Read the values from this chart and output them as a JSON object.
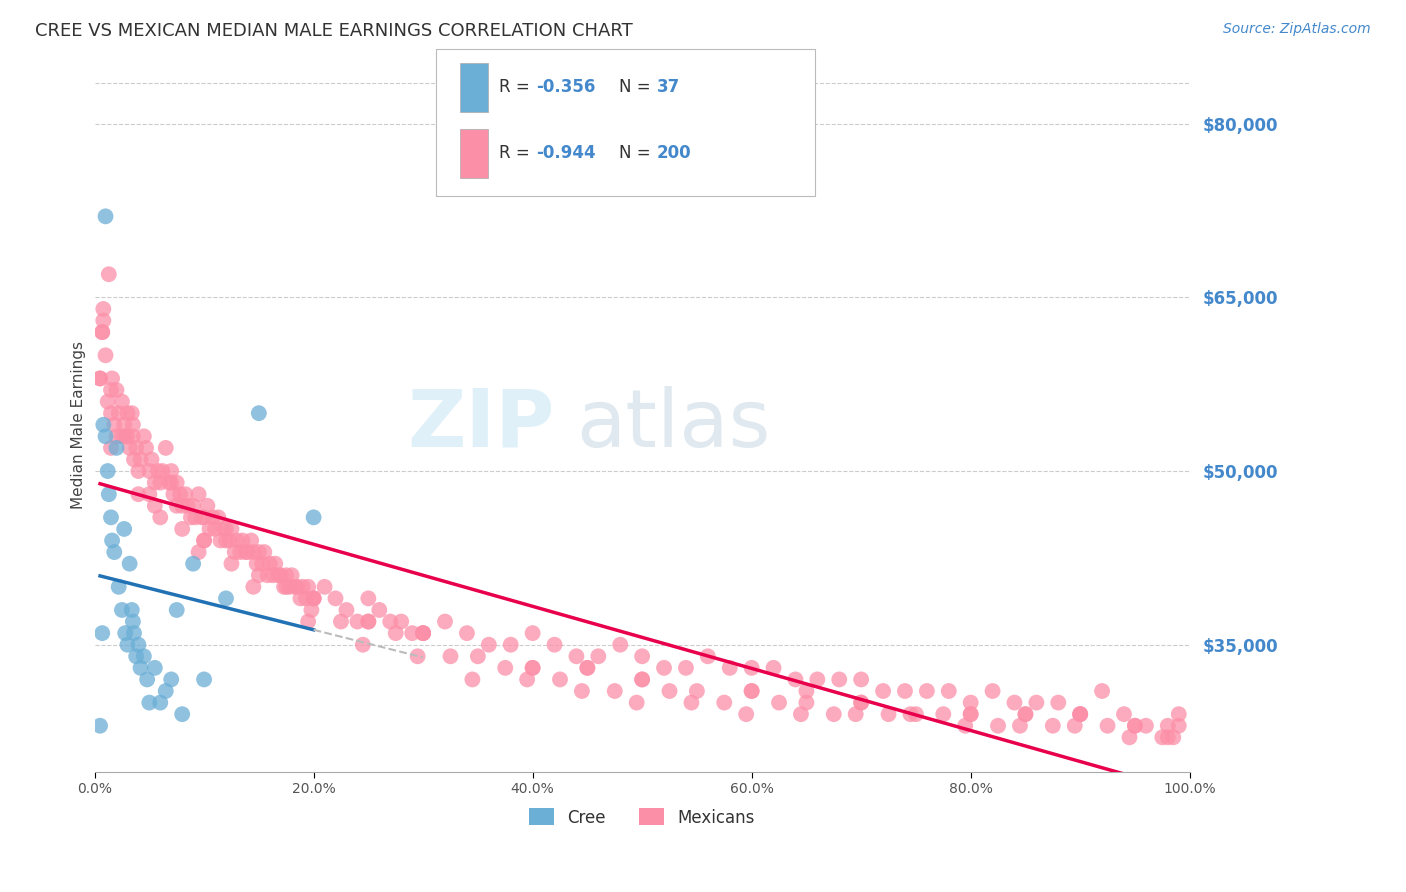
{
  "title": "CREE VS MEXICAN MEDIAN MALE EARNINGS CORRELATION CHART",
  "source": "Source: ZipAtlas.com",
  "ylabel": "Median Male Earnings",
  "right_yticks": [
    80000,
    65000,
    50000,
    35000
  ],
  "right_ytick_labels": [
    "$80,000",
    "$65,000",
    "$50,000",
    "$35,000"
  ],
  "cree_color": "#6baed6",
  "cree_line_color": "#2171b5",
  "mexican_color": "#fc8fa8",
  "mexican_line_color": "#e8004c",
  "watermark_zip": "ZIP",
  "watermark_atlas": "atlas",
  "bg_color": "#ffffff",
  "grid_color": "#cccccc",
  "title_color": "#333333",
  "label_color": "#4488cc",
  "xmin": 0.0,
  "xmax": 1.0,
  "ymin": 24000,
  "ymax": 84000,
  "cree_scatter_x": [
    0.005,
    0.007,
    0.008,
    0.01,
    0.012,
    0.013,
    0.015,
    0.016,
    0.018,
    0.02,
    0.022,
    0.025,
    0.027,
    0.028,
    0.03,
    0.032,
    0.034,
    0.035,
    0.036,
    0.038,
    0.04,
    0.042,
    0.045,
    0.048,
    0.05,
    0.055,
    0.06,
    0.065,
    0.07,
    0.075,
    0.08,
    0.09,
    0.1,
    0.12,
    0.15,
    0.2,
    0.01
  ],
  "cree_scatter_y": [
    28000,
    36000,
    54000,
    53000,
    50000,
    48000,
    46000,
    44000,
    43000,
    52000,
    40000,
    38000,
    45000,
    36000,
    35000,
    42000,
    38000,
    37000,
    36000,
    34000,
    35000,
    33000,
    34000,
    32000,
    30000,
    33000,
    30000,
    31000,
    32000,
    38000,
    29000,
    42000,
    32000,
    39000,
    55000,
    46000,
    72000
  ],
  "mexican_scatter_x": [
    0.005,
    0.007,
    0.008,
    0.01,
    0.012,
    0.013,
    0.015,
    0.016,
    0.018,
    0.02,
    0.022,
    0.025,
    0.027,
    0.028,
    0.03,
    0.032,
    0.034,
    0.035,
    0.036,
    0.038,
    0.04,
    0.042,
    0.045,
    0.047,
    0.05,
    0.052,
    0.055,
    0.058,
    0.06,
    0.062,
    0.065,
    0.068,
    0.07,
    0.072,
    0.075,
    0.078,
    0.08,
    0.083,
    0.085,
    0.088,
    0.09,
    0.092,
    0.095,
    0.098,
    0.1,
    0.103,
    0.105,
    0.108,
    0.11,
    0.113,
    0.115,
    0.118,
    0.12,
    0.123,
    0.125,
    0.128,
    0.13,
    0.133,
    0.135,
    0.138,
    0.14,
    0.143,
    0.145,
    0.148,
    0.15,
    0.153,
    0.155,
    0.158,
    0.16,
    0.163,
    0.165,
    0.168,
    0.17,
    0.173,
    0.175,
    0.178,
    0.18,
    0.183,
    0.185,
    0.188,
    0.19,
    0.193,
    0.195,
    0.198,
    0.2,
    0.21,
    0.22,
    0.23,
    0.24,
    0.25,
    0.26,
    0.27,
    0.28,
    0.29,
    0.3,
    0.32,
    0.34,
    0.36,
    0.38,
    0.4,
    0.42,
    0.44,
    0.46,
    0.48,
    0.5,
    0.52,
    0.54,
    0.56,
    0.58,
    0.6,
    0.62,
    0.64,
    0.66,
    0.68,
    0.7,
    0.72,
    0.74,
    0.76,
    0.78,
    0.8,
    0.82,
    0.84,
    0.86,
    0.88,
    0.9,
    0.92,
    0.94,
    0.96,
    0.98,
    0.99,
    0.008,
    0.015,
    0.025,
    0.04,
    0.06,
    0.08,
    0.1,
    0.15,
    0.2,
    0.25,
    0.3,
    0.35,
    0.4,
    0.45,
    0.5,
    0.55,
    0.6,
    0.65,
    0.7,
    0.75,
    0.8,
    0.85,
    0.9,
    0.95,
    0.98,
    0.005,
    0.02,
    0.05,
    0.1,
    0.2,
    0.3,
    0.4,
    0.5,
    0.6,
    0.7,
    0.8,
    0.9,
    0.99,
    0.007,
    0.03,
    0.07,
    0.12,
    0.25,
    0.45,
    0.65,
    0.85,
    0.95,
    0.035,
    0.075,
    0.125,
    0.175,
    0.225,
    0.275,
    0.325,
    0.375,
    0.425,
    0.475,
    0.525,
    0.575,
    0.625,
    0.675,
    0.725,
    0.775,
    0.825,
    0.875,
    0.925,
    0.975,
    0.015,
    0.055,
    0.095,
    0.145,
    0.195,
    0.245,
    0.295,
    0.345,
    0.395,
    0.445,
    0.495,
    0.545,
    0.595,
    0.645,
    0.695,
    0.745,
    0.795,
    0.845,
    0.895,
    0.945,
    0.985
  ],
  "mexican_scatter_y": [
    58000,
    62000,
    64000,
    60000,
    56000,
    67000,
    55000,
    58000,
    54000,
    57000,
    55000,
    56000,
    54000,
    53000,
    53000,
    52000,
    55000,
    53000,
    51000,
    52000,
    50000,
    51000,
    53000,
    52000,
    50000,
    51000,
    49000,
    50000,
    49000,
    50000,
    52000,
    49000,
    50000,
    48000,
    49000,
    48000,
    47000,
    48000,
    47000,
    46000,
    47000,
    46000,
    48000,
    46000,
    46000,
    47000,
    45000,
    46000,
    45000,
    46000,
    44000,
    45000,
    45000,
    44000,
    45000,
    43000,
    44000,
    43000,
    44000,
    43000,
    43000,
    44000,
    43000,
    42000,
    43000,
    42000,
    43000,
    41000,
    42000,
    41000,
    42000,
    41000,
    41000,
    40000,
    41000,
    40000,
    41000,
    40000,
    40000,
    39000,
    40000,
    39000,
    40000,
    38000,
    39000,
    40000,
    39000,
    38000,
    37000,
    39000,
    38000,
    37000,
    37000,
    36000,
    36000,
    37000,
    36000,
    35000,
    35000,
    36000,
    35000,
    34000,
    34000,
    35000,
    34000,
    33000,
    33000,
    34000,
    33000,
    33000,
    33000,
    32000,
    32000,
    32000,
    32000,
    31000,
    31000,
    31000,
    31000,
    30000,
    31000,
    30000,
    30000,
    30000,
    29000,
    31000,
    29000,
    28000,
    28000,
    29000,
    63000,
    57000,
    53000,
    48000,
    46000,
    45000,
    44000,
    41000,
    39000,
    37000,
    36000,
    34000,
    33000,
    33000,
    32000,
    31000,
    31000,
    30000,
    30000,
    29000,
    29000,
    29000,
    29000,
    28000,
    27000,
    58000,
    53000,
    48000,
    44000,
    39000,
    36000,
    33000,
    32000,
    31000,
    30000,
    29000,
    29000,
    28000,
    62000,
    55000,
    49000,
    44000,
    37000,
    33000,
    31000,
    29000,
    28000,
    54000,
    47000,
    42000,
    40000,
    37000,
    36000,
    34000,
    33000,
    32000,
    31000,
    31000,
    30000,
    30000,
    29000,
    29000,
    29000,
    28000,
    28000,
    28000,
    27000,
    52000,
    47000,
    43000,
    40000,
    37000,
    35000,
    34000,
    32000,
    32000,
    31000,
    30000,
    30000,
    29000,
    29000,
    29000,
    29000,
    28000,
    28000,
    28000,
    27000,
    27000
  ]
}
